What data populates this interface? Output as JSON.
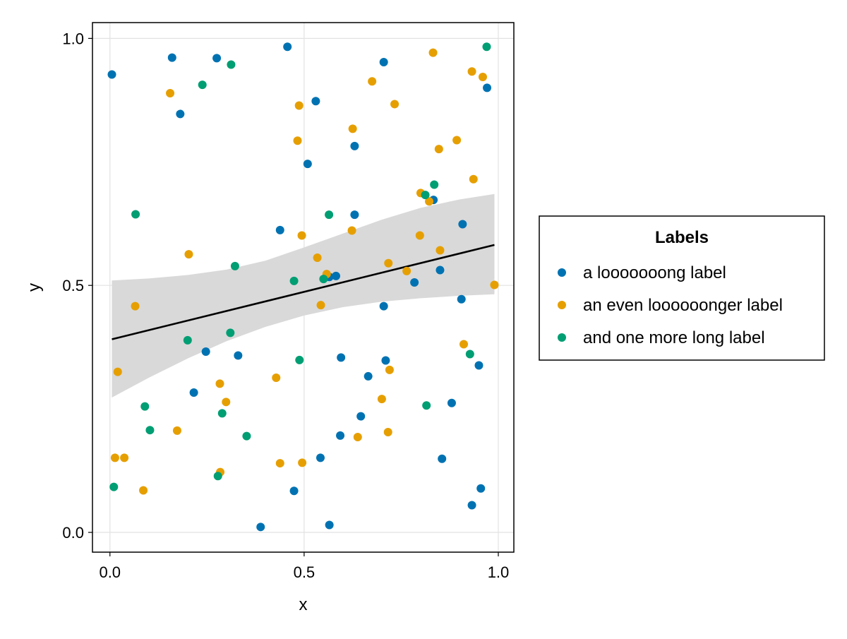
{
  "chart_data": {
    "type": "scatter",
    "title": "",
    "xlabel": "x",
    "ylabel": "y",
    "xlim": [
      -0.045,
      1.04
    ],
    "ylim": [
      -0.04,
      1.032
    ],
    "x_ticks": [
      {
        "value": 0.0,
        "label": "0.0"
      },
      {
        "value": 0.5,
        "label": "0.5"
      },
      {
        "value": 1.0,
        "label": "1.0"
      }
    ],
    "y_ticks": [
      {
        "value": 0.0,
        "label": "0.0"
      },
      {
        "value": 0.5,
        "label": "0.5"
      },
      {
        "value": 1.0,
        "label": "1.0"
      }
    ],
    "grid": true,
    "legend": {
      "title": "Labels",
      "placement": "right"
    },
    "series": [
      {
        "name": "a looooooong label",
        "color": "#0072B2",
        "points": [
          [
            0.005,
            0.927
          ],
          [
            0.16,
            0.961
          ],
          [
            0.181,
            0.847
          ],
          [
            0.275,
            0.96
          ],
          [
            0.457,
            0.983
          ],
          [
            0.53,
            0.873
          ],
          [
            0.705,
            0.952
          ],
          [
            0.971,
            0.9
          ],
          [
            0.509,
            0.746
          ],
          [
            0.63,
            0.782
          ],
          [
            0.63,
            0.643
          ],
          [
            0.438,
            0.612
          ],
          [
            0.833,
            0.673
          ],
          [
            0.908,
            0.624
          ],
          [
            0.85,
            0.531
          ],
          [
            0.565,
            0.517
          ],
          [
            0.582,
            0.519
          ],
          [
            0.784,
            0.506
          ],
          [
            0.905,
            0.472
          ],
          [
            0.705,
            0.458
          ],
          [
            0.247,
            0.366
          ],
          [
            0.33,
            0.358
          ],
          [
            0.595,
            0.354
          ],
          [
            0.71,
            0.348
          ],
          [
            0.95,
            0.338
          ],
          [
            0.665,
            0.316
          ],
          [
            0.216,
            0.283
          ],
          [
            0.88,
            0.262
          ],
          [
            0.646,
            0.235
          ],
          [
            0.593,
            0.196
          ],
          [
            0.542,
            0.151
          ],
          [
            0.855,
            0.149
          ],
          [
            0.474,
            0.084
          ],
          [
            0.955,
            0.089
          ],
          [
            0.932,
            0.055
          ],
          [
            0.388,
            0.011
          ],
          [
            0.565,
            0.015
          ]
        ]
      },
      {
        "name": "an even loooooonger label",
        "color": "#E69F00",
        "points": [
          [
            0.832,
            0.971
          ],
          [
            0.932,
            0.933
          ],
          [
            0.96,
            0.922
          ],
          [
            0.675,
            0.913
          ],
          [
            0.155,
            0.889
          ],
          [
            0.487,
            0.864
          ],
          [
            0.733,
            0.867
          ],
          [
            0.625,
            0.817
          ],
          [
            0.483,
            0.793
          ],
          [
            0.893,
            0.794
          ],
          [
            0.847,
            0.776
          ],
          [
            0.936,
            0.715
          ],
          [
            0.8,
            0.687
          ],
          [
            0.822,
            0.67
          ],
          [
            0.623,
            0.611
          ],
          [
            0.494,
            0.601
          ],
          [
            0.798,
            0.601
          ],
          [
            0.85,
            0.571
          ],
          [
            0.203,
            0.563
          ],
          [
            0.534,
            0.556
          ],
          [
            0.717,
            0.545
          ],
          [
            0.764,
            0.529
          ],
          [
            0.558,
            0.523
          ],
          [
            0.99,
            0.501
          ],
          [
            0.065,
            0.458
          ],
          [
            0.543,
            0.46
          ],
          [
            0.911,
            0.381
          ],
          [
            0.02,
            0.325
          ],
          [
            0.72,
            0.329
          ],
          [
            0.428,
            0.313
          ],
          [
            0.283,
            0.301
          ],
          [
            0.7,
            0.27
          ],
          [
            0.299,
            0.264
          ],
          [
            0.173,
            0.206
          ],
          [
            0.716,
            0.203
          ],
          [
            0.638,
            0.193
          ],
          [
            0.013,
            0.151
          ],
          [
            0.037,
            0.151
          ],
          [
            0.438,
            0.14
          ],
          [
            0.495,
            0.141
          ],
          [
            0.284,
            0.122
          ],
          [
            0.086,
            0.085
          ]
        ]
      },
      {
        "name": "and one more long label",
        "color": "#009E73",
        "points": [
          [
            0.97,
            0.983
          ],
          [
            0.312,
            0.947
          ],
          [
            0.238,
            0.906
          ],
          [
            0.835,
            0.704
          ],
          [
            0.812,
            0.683
          ],
          [
            0.066,
            0.644
          ],
          [
            0.564,
            0.643
          ],
          [
            0.322,
            0.539
          ],
          [
            0.474,
            0.509
          ],
          [
            0.55,
            0.513
          ],
          [
            0.31,
            0.404
          ],
          [
            0.2,
            0.389
          ],
          [
            0.488,
            0.349
          ],
          [
            0.927,
            0.361
          ],
          [
            0.09,
            0.255
          ],
          [
            0.815,
            0.257
          ],
          [
            0.289,
            0.241
          ],
          [
            0.103,
            0.207
          ],
          [
            0.352,
            0.195
          ],
          [
            0.278,
            0.114
          ],
          [
            0.01,
            0.092
          ]
        ]
      }
    ],
    "regression": {
      "color": "#000000",
      "band_color": "#d9d9d9",
      "line": [
        [
          0.005,
          0.391
        ],
        [
          0.99,
          0.582
        ]
      ],
      "band_upper": [
        [
          0.005,
          0.51
        ],
        [
          0.1,
          0.514
        ],
        [
          0.2,
          0.521
        ],
        [
          0.3,
          0.532
        ],
        [
          0.4,
          0.55
        ],
        [
          0.5,
          0.577
        ],
        [
          0.6,
          0.605
        ],
        [
          0.7,
          0.633
        ],
        [
          0.8,
          0.657
        ],
        [
          0.9,
          0.674
        ],
        [
          0.99,
          0.685
        ]
      ],
      "band_lower": [
        [
          0.005,
          0.273
        ],
        [
          0.1,
          0.313
        ],
        [
          0.2,
          0.352
        ],
        [
          0.3,
          0.387
        ],
        [
          0.4,
          0.416
        ],
        [
          0.5,
          0.439
        ],
        [
          0.6,
          0.456
        ],
        [
          0.7,
          0.467
        ],
        [
          0.8,
          0.474
        ],
        [
          0.9,
          0.479
        ],
        [
          0.99,
          0.482
        ]
      ]
    }
  }
}
